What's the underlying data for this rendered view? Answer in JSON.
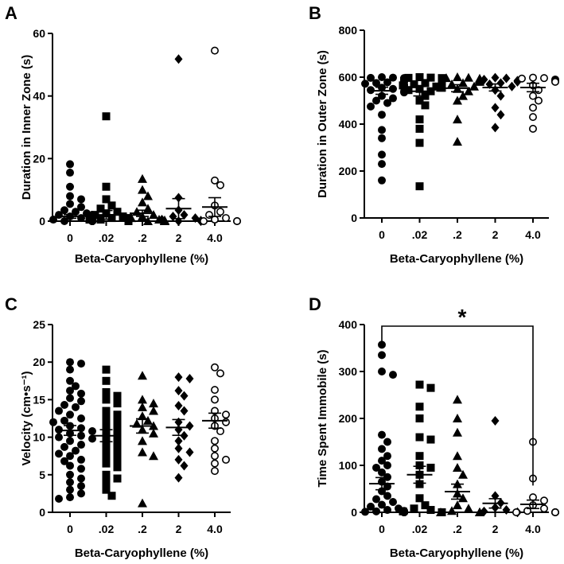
{
  "chart_data": [
    {
      "type": "scatter",
      "letter": "A",
      "ylabel": "Duration in Inner Zone (s)",
      "xlabel": "Beta-Caryophyllene (%)",
      "categories": [
        "0",
        ".02",
        ".2",
        "2",
        "4.0"
      ],
      "ylim": [
        0,
        60
      ],
      "yticks": [
        0,
        20,
        40,
        60
      ],
      "markers": [
        "circle",
        "square",
        "triangle",
        "diamond",
        "open-circle"
      ],
      "means": [
        1.5,
        2.0,
        2.5,
        4.0,
        4.5
      ],
      "sems": [
        0.6,
        1.4,
        1.0,
        3.2,
        3.0
      ],
      "series": [
        {
          "values": [
            18.2,
            15.5,
            11,
            8,
            7,
            5.5,
            4.5,
            3.5,
            3,
            2.5,
            2,
            2,
            1.5,
            1.5,
            1,
            1,
            1,
            0.5,
            0.5,
            0.5,
            0.3,
            0.3,
            0.2,
            0.2,
            0.1,
            0.1,
            0,
            0,
            0,
            0,
            0,
            0,
            0,
            0,
            0,
            0,
            0,
            0,
            0,
            0
          ]
        },
        {
          "values": [
            33.5,
            11,
            7,
            5,
            4,
            3,
            2.5,
            2,
            1.5,
            1,
            1,
            0.5,
            0.5,
            0.3,
            0.2,
            0.1,
            0,
            0,
            0,
            0,
            0,
            0,
            0,
            0,
            0,
            0,
            0
          ]
        },
        {
          "values": [
            13.5,
            10,
            8,
            6,
            4,
            3,
            2,
            1.5,
            1,
            0.5,
            0.3,
            0,
            0,
            0,
            0,
            0,
            0,
            0
          ]
        },
        {
          "values": [
            51.8,
            7.5,
            3.5,
            2,
            1.5,
            1,
            0.5,
            0.2,
            0,
            0,
            0
          ]
        },
        {
          "values": [
            54.5,
            13,
            11.5,
            5,
            3,
            2,
            1,
            0.5,
            0,
            0,
            0
          ]
        }
      ]
    },
    {
      "type": "scatter",
      "letter": "B",
      "ylabel": "Duration in Outer Zone (s)",
      "xlabel": "Beta-Caryophyllene (%)",
      "categories": [
        "0",
        ".02",
        ".2",
        "2",
        "4.0"
      ],
      "ylim": [
        0,
        800
      ],
      "yticks": [
        0,
        200,
        400,
        600,
        800
      ],
      "markers": [
        "circle",
        "square",
        "triangle",
        "diamond",
        "open-circle"
      ],
      "means": [
        542,
        540,
        553,
        556,
        556
      ],
      "sems": [
        15,
        20,
        15,
        15,
        18
      ],
      "series": [
        {
          "values": [
            600,
            598,
            597,
            596,
            595,
            595,
            594,
            593,
            592,
            591,
            590,
            589,
            588,
            587,
            585,
            583,
            580,
            578,
            575,
            572,
            568,
            565,
            560,
            555,
            550,
            545,
            540,
            535,
            520,
            510,
            500,
            490,
            475,
            440,
            375,
            340,
            270,
            230,
            160
          ]
        },
        {
          "values": [
            600,
            598,
            597,
            596,
            595,
            593,
            592,
            590,
            588,
            585,
            583,
            580,
            575,
            570,
            565,
            560,
            555,
            550,
            545,
            540,
            520,
            500,
            480,
            420,
            380,
            320,
            135
          ]
        },
        {
          "values": [
            600,
            598,
            596,
            594,
            590,
            585,
            580,
            575,
            570,
            560,
            555,
            550,
            540,
            520,
            500,
            420,
            325
          ]
        },
        {
          "values": [
            598,
            595,
            590,
            585,
            580,
            575,
            570,
            560,
            545,
            520,
            470,
            440,
            385
          ]
        },
        {
          "values": [
            598,
            596,
            594,
            590,
            585,
            580,
            565,
            545,
            520,
            500,
            470,
            430,
            380
          ]
        }
      ]
    },
    {
      "type": "scatter",
      "letter": "C",
      "ylabel": "Velocity (cm•s⁻¹)",
      "xlabel": "Beta-Caryophyllene (%)",
      "categories": [
        "0",
        ".02",
        ".2",
        "2",
        "4.0"
      ],
      "ylim": [
        0,
        25
      ],
      "yticks": [
        0,
        5,
        10,
        15,
        20,
        25
      ],
      "markers": [
        "circle",
        "square",
        "triangle",
        "diamond",
        "open-circle"
      ],
      "means": [
        10.9,
        10.2,
        11.5,
        11.3,
        12.2
      ],
      "sems": [
        0.65,
        0.8,
        0.95,
        1.05,
        1.0
      ],
      "series": [
        {
          "values": [
            20,
            19.8,
            19,
            17.5,
            16.8,
            16.2,
            15.8,
            15.2,
            14.8,
            14.3,
            14,
            13.5,
            13,
            12.5,
            12.2,
            12,
            11.5,
            11.2,
            11,
            10.8,
            10.5,
            10.2,
            10,
            9.8,
            9.5,
            9,
            8.7,
            8.2,
            7.8,
            7.5,
            7,
            6.8,
            6.2,
            5.8,
            5,
            4.5,
            4,
            3.5,
            3,
            2.5,
            2,
            1.8
          ]
        },
        {
          "values": [
            19,
            17.5,
            16,
            15.5,
            15,
            14.5,
            13.5,
            13,
            12.5,
            12,
            11.5,
            11,
            10.5,
            10,
            9.5,
            9,
            8.5,
            8,
            7.5,
            7,
            6.5,
            6,
            5,
            4.5,
            4,
            3,
            2.2
          ]
        },
        {
          "values": [
            18.2,
            15,
            14.5,
            14,
            13.5,
            12.8,
            12.2,
            11.8,
            11.5,
            11,
            10.5,
            9.5,
            8,
            7.5,
            1.2
          ]
        },
        {
          "values": [
            18,
            17.8,
            16.2,
            15.5,
            14.2,
            13.5,
            12,
            11.5,
            11,
            10.2,
            9.5,
            8.5,
            8,
            7,
            6.2,
            4.6
          ]
        },
        {
          "values": [
            19.3,
            18.5,
            16.3,
            15,
            13.5,
            13,
            12.5,
            12,
            11.5,
            10.8,
            9.5,
            8.5,
            7.5,
            7,
            6.5,
            5.5
          ]
        }
      ]
    },
    {
      "type": "scatter",
      "letter": "D",
      "ylabel": "Time Spent Immobile (s)",
      "xlabel": "Beta-Caryophyllene (%)",
      "categories": [
        "0",
        ".02",
        ".2",
        "2",
        "4.0"
      ],
      "ylim": [
        0,
        400
      ],
      "yticks": [
        0,
        100,
        200,
        300,
        400
      ],
      "markers": [
        "circle",
        "square",
        "triangle",
        "diamond",
        "open-circle"
      ],
      "means": [
        61,
        80,
        44,
        19,
        17
      ],
      "sems": [
        13,
        18,
        16,
        10,
        9
      ],
      "significance": {
        "from": 0,
        "to": 4,
        "label": "*"
      },
      "series": [
        {
          "values": [
            357,
            335,
            300,
            293,
            165,
            150,
            135,
            120,
            110,
            100,
            95,
            85,
            75,
            65,
            55,
            45,
            35,
            28,
            22,
            16,
            12,
            8,
            5,
            3,
            2,
            1,
            0.5,
            0,
            0,
            0,
            0,
            0,
            0,
            0,
            0,
            0,
            0,
            0,
            0
          ]
        },
        {
          "values": [
            272,
            265,
            225,
            200,
            160,
            155,
            120,
            100,
            95,
            80,
            60,
            30,
            15,
            8,
            5,
            2,
            0,
            0,
            0,
            0,
            0,
            0,
            0
          ]
        },
        {
          "values": [
            240,
            200,
            170,
            120,
            95,
            80,
            60,
            40,
            30,
            15,
            8,
            3,
            0,
            0,
            0,
            0,
            0
          ]
        },
        {
          "values": [
            195,
            35,
            20,
            10,
            5,
            2,
            0,
            0,
            0,
            0
          ]
        },
        {
          "values": [
            150,
            72,
            32,
            25,
            15,
            8,
            3,
            0,
            0,
            0,
            0
          ]
        }
      ]
    }
  ]
}
